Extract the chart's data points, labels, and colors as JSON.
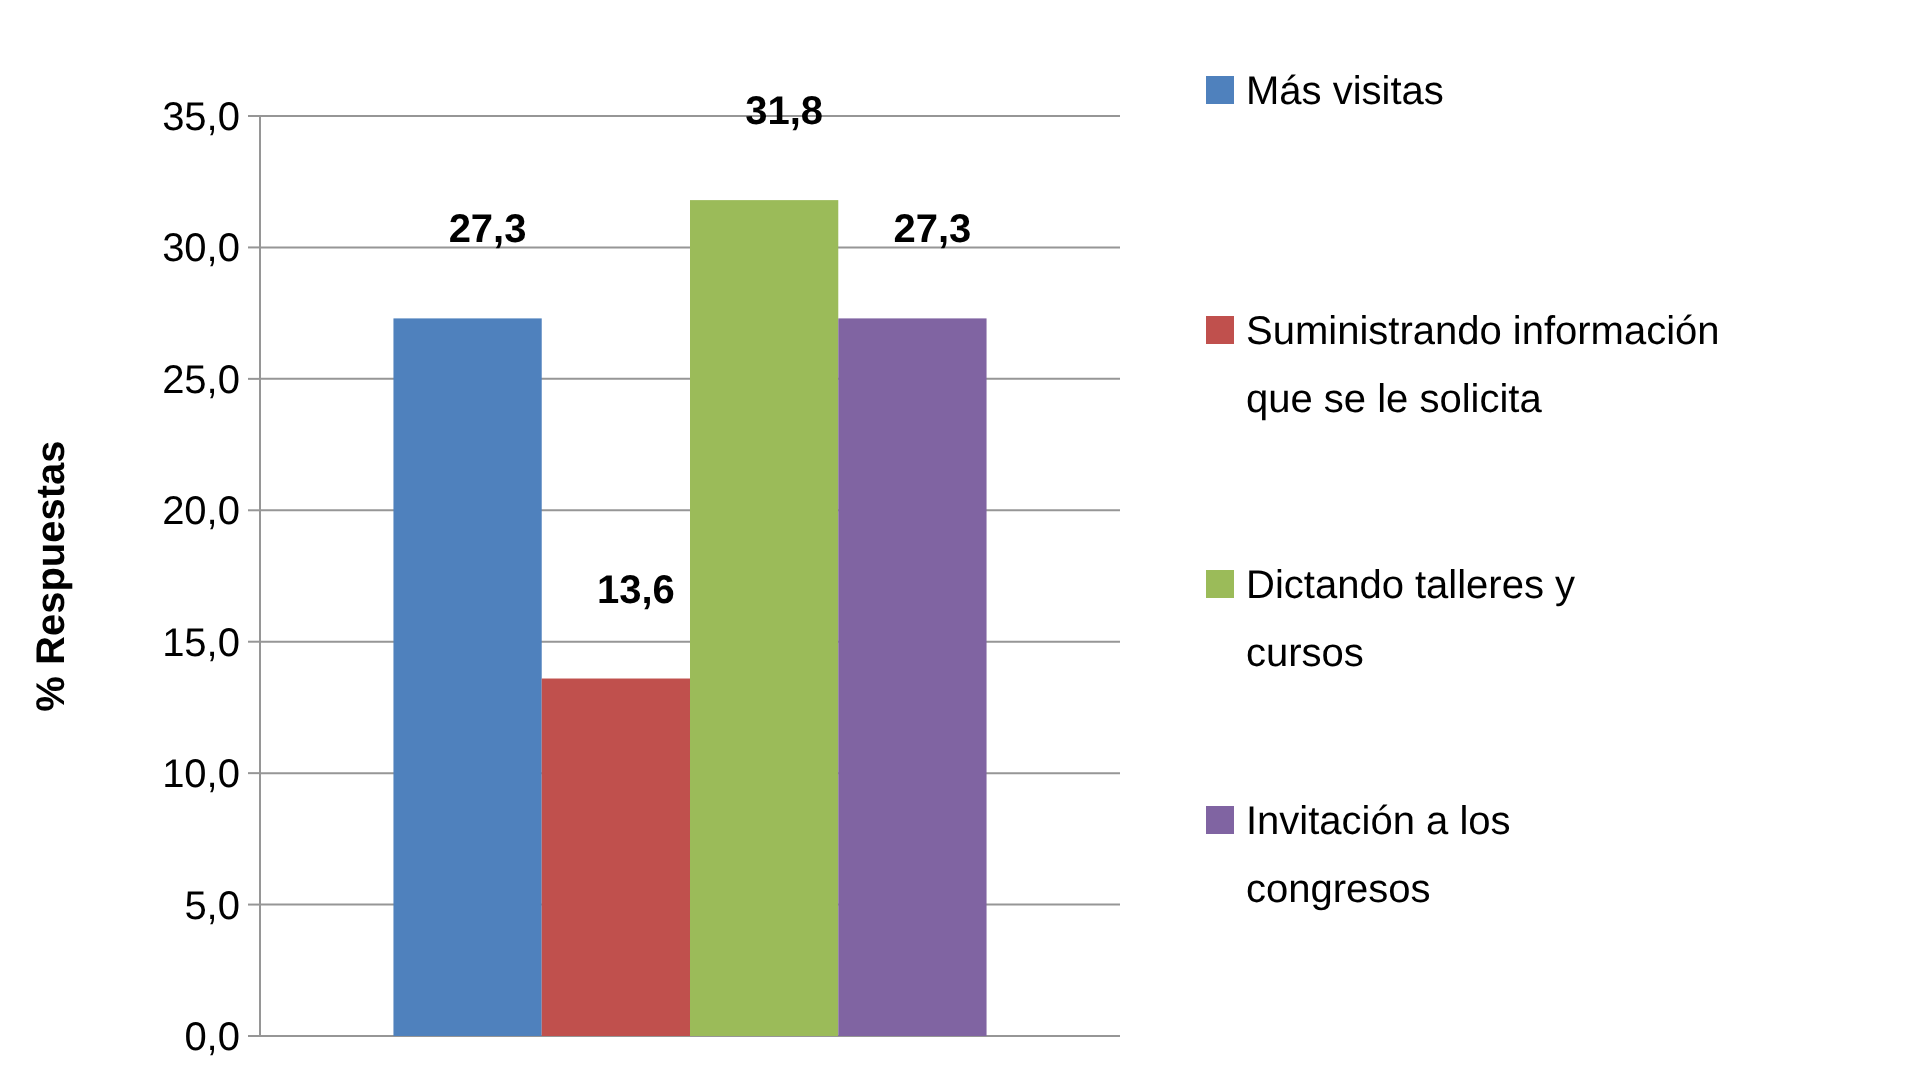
{
  "chart_data": {
    "type": "bar",
    "ylabel": "% Respuestas",
    "categories": [
      null
    ],
    "series": [
      {
        "name": "Más visitas",
        "color": "#4f81bd",
        "values": [
          27.3
        ],
        "value_labels": [
          "27,3"
        ]
      },
      {
        "name": "Suministrando información que se le solicita",
        "color": "#c0504d",
        "values": [
          13.6
        ],
        "value_labels": [
          "13,6"
        ]
      },
      {
        "name": "Dictando talleres y cursos",
        "color": "#9bbb59",
        "values": [
          31.8
        ],
        "value_labels": [
          "31,8"
        ]
      },
      {
        "name": "Invitación a los congresos",
        "color": "#8064a2",
        "values": [
          27.3
        ],
        "value_labels": [
          "27,3"
        ]
      }
    ],
    "ylim": [
      0,
      35
    ],
    "yticks": [
      {
        "value": 0,
        "label": "0,0"
      },
      {
        "value": 5,
        "label": "5,0"
      },
      {
        "value": 10,
        "label": "10,0"
      },
      {
        "value": 15,
        "label": "15,0"
      },
      {
        "value": 20,
        "label": "20,0"
      },
      {
        "value": 25,
        "label": "25,0"
      },
      {
        "value": 30,
        "label": "30,0"
      },
      {
        "value": 35,
        "label": "35,0"
      }
    ],
    "grid": "y",
    "legend": "right"
  }
}
